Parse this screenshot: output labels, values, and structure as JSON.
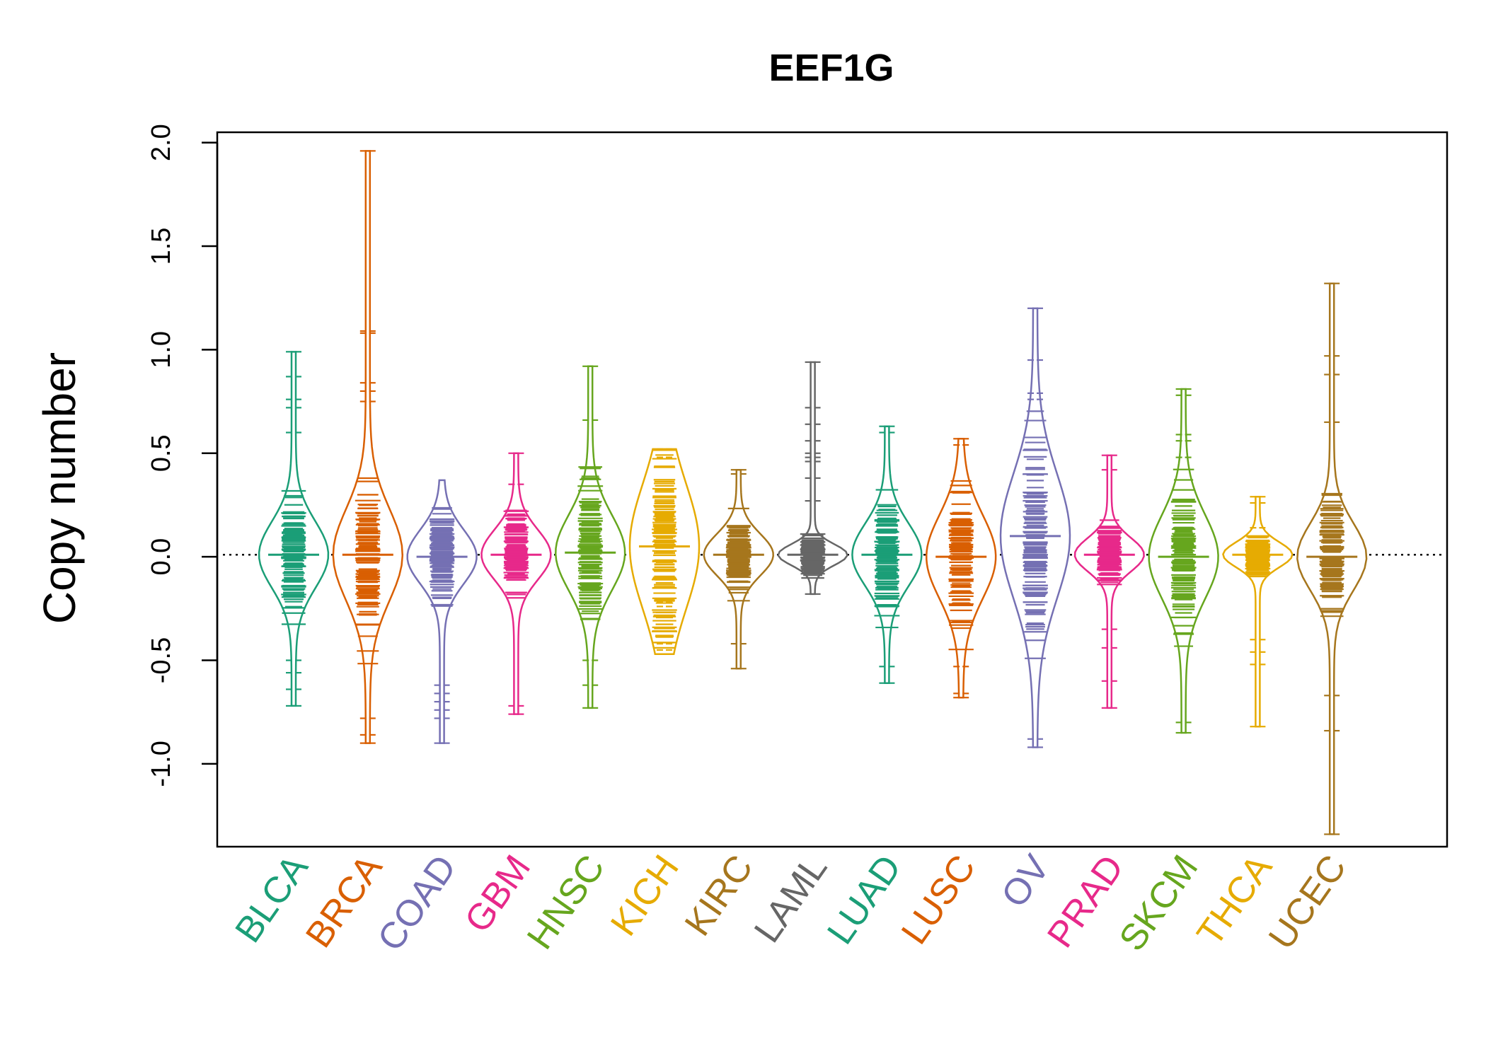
{
  "chart_data": {
    "type": "beanplot",
    "title": "EEF1G",
    "xlabel": "",
    "ylabel": "Copy number",
    "ylim": [
      -1.4,
      2.05
    ],
    "yticks": [
      "-1.0",
      "-0.5",
      "0.0",
      "0.5",
      "1.0",
      "1.5",
      "2.0"
    ],
    "reference_line": 0.01,
    "grid": false,
    "categories": [
      "BLCA",
      "BRCA",
      "COAD",
      "GBM",
      "HNSC",
      "KICH",
      "KIRC",
      "LAML",
      "LUAD",
      "LUSC",
      "OV",
      "PRAD",
      "SKCM",
      "THCA",
      "UCEC"
    ],
    "colors": [
      "#1b9e77",
      "#d95f02",
      "#7570b3",
      "#e7298a",
      "#66a61e",
      "#e6ab02",
      "#a6761d",
      "#666666",
      "#1b9e77",
      "#d95f02",
      "#7570b3",
      "#e7298a",
      "#66a61e",
      "#e6ab02",
      "#a6761d"
    ],
    "series": [
      {
        "category": "BLCA",
        "min": -0.72,
        "max": 0.99,
        "median": 0.01,
        "spread": 0.16,
        "outliers": [
          0.99,
          0.87,
          0.76,
          0.72,
          0.6,
          -0.5,
          -0.56,
          -0.64,
          -0.72
        ]
      },
      {
        "category": "BRCA",
        "min": -0.9,
        "max": 1.96,
        "median": 0.01,
        "spread": 0.22,
        "outliers": [
          1.96,
          1.09,
          1.08,
          0.84,
          0.8,
          0.75,
          -0.78,
          -0.86,
          -0.9
        ]
      },
      {
        "category": "COAD",
        "min": -0.9,
        "max": 0.37,
        "median": 0.0,
        "spread": 0.13,
        "outliers": [
          -0.62,
          -0.66,
          -0.7,
          -0.74,
          -0.78,
          -0.9
        ]
      },
      {
        "category": "GBM",
        "min": -0.76,
        "max": 0.5,
        "median": 0.01,
        "spread": 0.12,
        "outliers": [
          0.5,
          0.35,
          -0.72,
          -0.76
        ]
      },
      {
        "category": "HNSC",
        "min": -0.73,
        "max": 0.92,
        "median": 0.02,
        "spread": 0.18,
        "outliers": [
          0.92,
          0.66,
          -0.5,
          -0.62,
          -0.73
        ]
      },
      {
        "category": "KICH",
        "min": -0.47,
        "max": 0.52,
        "median": 0.05,
        "spread": 0.3,
        "outliers": [
          0.52,
          0.48,
          -0.22,
          -0.24,
          -0.42,
          -0.45,
          -0.47
        ]
      },
      {
        "category": "KIRC",
        "min": -0.54,
        "max": 0.42,
        "median": 0.01,
        "spread": 0.1,
        "outliers": [
          0.42,
          0.4,
          -0.42,
          -0.54
        ]
      },
      {
        "category": "LAML",
        "min": -0.18,
        "max": 0.94,
        "median": 0.01,
        "spread": 0.05,
        "outliers": [
          0.94,
          0.72,
          0.64,
          0.56,
          0.5,
          0.48,
          0.46,
          0.38,
          0.27,
          -0.08,
          -0.18
        ]
      },
      {
        "category": "LUAD",
        "min": -0.61,
        "max": 0.63,
        "median": 0.01,
        "spread": 0.15,
        "outliers": [
          0.63,
          0.6,
          -0.53,
          -0.61
        ]
      },
      {
        "category": "LUSC",
        "min": -0.68,
        "max": 0.57,
        "median": 0.0,
        "spread": 0.2,
        "outliers": [
          0.57,
          0.54,
          -0.53,
          -0.66,
          -0.68
        ]
      },
      {
        "category": "OV",
        "min": -0.92,
        "max": 1.2,
        "median": 0.1,
        "spread": 0.3,
        "outliers": [
          1.2,
          0.95,
          0.79,
          0.76,
          -0.88,
          -0.92
        ]
      },
      {
        "category": "PRAD",
        "min": -0.73,
        "max": 0.49,
        "median": 0.01,
        "spread": 0.08,
        "outliers": [
          0.49,
          0.42,
          -0.35,
          -0.44,
          -0.6,
          -0.73
        ]
      },
      {
        "category": "SKCM",
        "min": -0.85,
        "max": 0.81,
        "median": 0.0,
        "spread": 0.2,
        "outliers": [
          0.81,
          0.78,
          0.59,
          0.56,
          0.48,
          -0.8,
          -0.85
        ]
      },
      {
        "category": "THCA",
        "min": -0.82,
        "max": 0.29,
        "median": 0.01,
        "spread": 0.06,
        "outliers": [
          0.29,
          0.26,
          0.14,
          -0.4,
          -0.46,
          -0.52,
          -0.82
        ]
      },
      {
        "category": "UCEC",
        "min": -1.34,
        "max": 1.32,
        "median": 0.0,
        "spread": 0.16,
        "outliers": [
          1.32,
          0.97,
          0.88,
          0.65,
          -0.67,
          -0.84,
          -1.34
        ]
      }
    ]
  }
}
